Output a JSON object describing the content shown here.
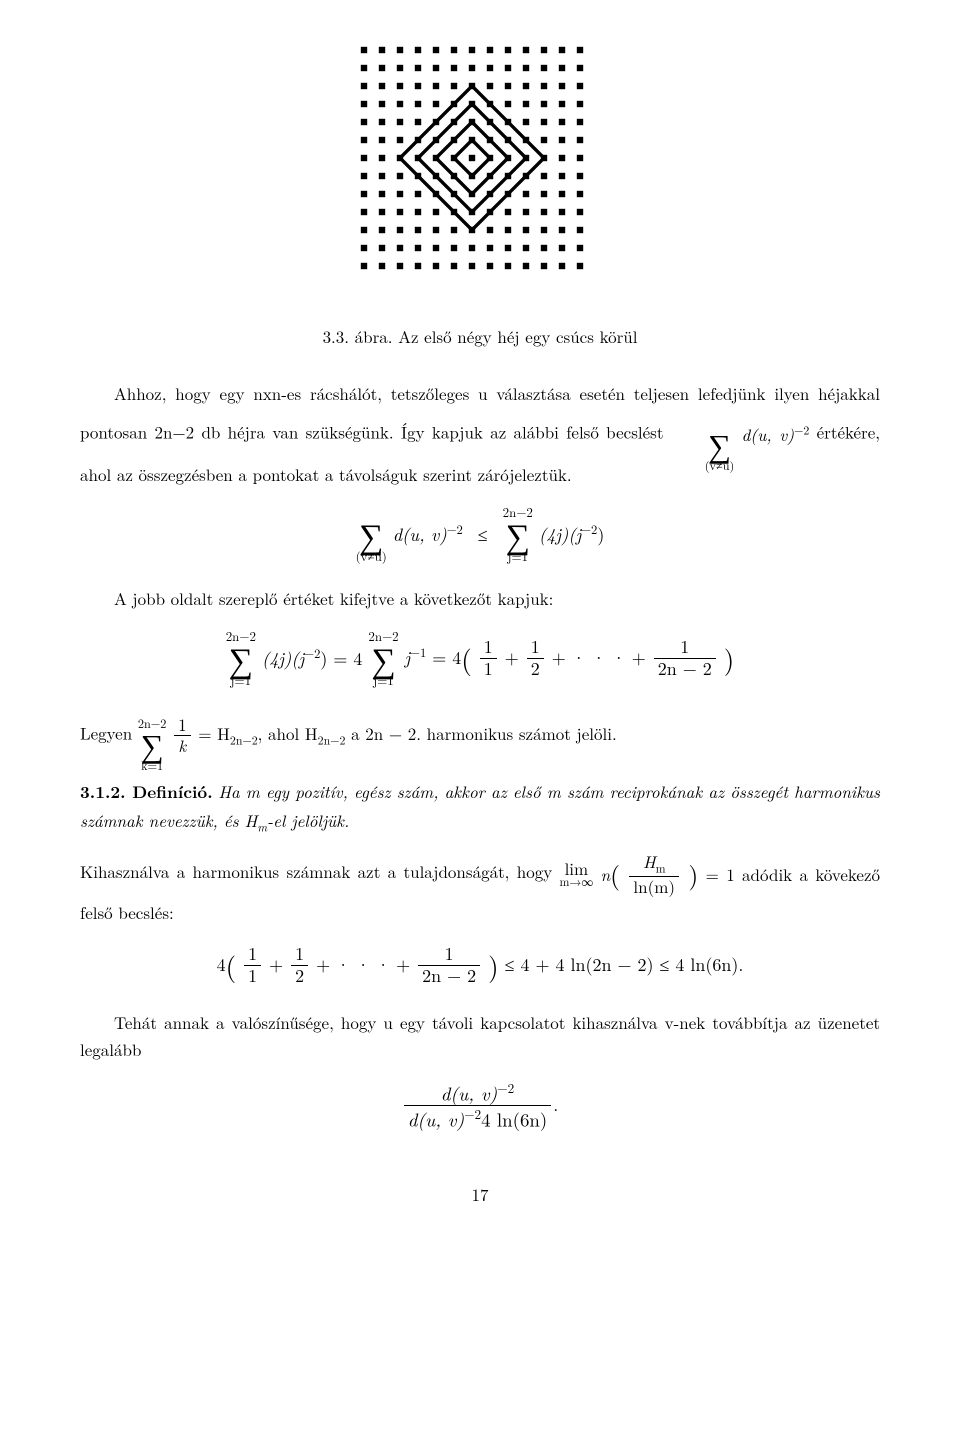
{
  "figure": {
    "caption_label": "3.3. ábra.",
    "caption_text": "Az első négy héj egy csúcs körül",
    "grid_size": 13,
    "dot_color": "#000000",
    "line_color": "#000000",
    "dot_step": 18,
    "dot_radius": 3.2,
    "line_width": 3.4,
    "rings": [
      1,
      2,
      3,
      4
    ]
  },
  "p1": "Ahhoz, hogy egy nxn-es rácshálót, tetszőleges u választása esetén teljesen lefedjünk ilyen héjakkal pontosan 2n−2 db héjra van szükségünk. Így kapjuk az alábbi felső becslést ",
  "p1_tail": " értékére, ahol az összegzésben a pontokat a távolságuk szerint zárójeleztük.",
  "eq1_lhs_bot": "(v≠u)",
  "eq1_lhs_body": "d(u, v)",
  "eq1_lhs_exp": "−2",
  "eq1_rhs_top": "2n−2",
  "eq1_rhs_bot": "j=1",
  "eq1_rhs_body": "(4j)(j",
  "eq1_rhs_exp": "−2",
  "eq1_rhs_close": ")",
  "p2": "A jobb oldalt szereplő értéket kifejtve a következőt kapjuk:",
  "eq2_sum_top": "2n−2",
  "eq2_sum_bot": "j=1",
  "eq2_a": "(4j)(j",
  "eq2_a_exp": "−2",
  "eq2_a_close": ") = 4",
  "eq2_b": "j",
  "eq2_b_exp": "−1",
  "eq2_eq4open": " = 4",
  "eq2_frac1_num": "1",
  "eq2_frac1_den": "1",
  "eq2_frac2_num": "1",
  "eq2_frac2_den": "2",
  "eq2_dots": " + · · · + ",
  "eq2_frac3_num": "1",
  "eq2_frac3_den": "2n − 2",
  "p3_a": "Legyen ",
  "p3_sum_top": "2n−2",
  "p3_sum_bot": "k=1",
  "p3_frac_num": "1",
  "p3_frac_den": "k",
  "p3_b": " = H",
  "p3_sub1": "2n−2",
  "p3_c": ", ahol H",
  "p3_sub2": "2n−2",
  "p3_d": " a 2n − 2. harmonikus számot jelöli.",
  "def_label": "3.1.2. Definíció.",
  "def_body": " Ha m egy pozitív, egész szám, akkor az első m szám reciprokának az összegét harmonikus számnak nevezzük, és H",
  "def_sub": "m",
  "def_tail": "-el jelöljük.",
  "p4a": "Kihasználva a harmonikus számnak azt a tulajdonságát, hogy ",
  "p4_lim": "lim",
  "p4_lim_sub": "m→∞",
  "p4_n": " n",
  "p4_frac_num": "H",
  "p4_frac_num_sub": "m",
  "p4_frac_den": "ln(m)",
  "p4b": " = 1 adódik a kövekező felső becslés:",
  "eq3_prefix": "4",
  "eq3_frac1_num": "1",
  "eq3_frac1_den": "1",
  "eq3_frac2_num": "1",
  "eq3_frac2_den": "2",
  "eq3_dots": " + · · · + ",
  "eq3_frac3_num": "1",
  "eq3_frac3_den": "2n − 2",
  "eq3_tail": " ≤ 4 + 4 ln(2n − 2) ≤ 4 ln(6n).",
  "p5": "Tehát annak a valószínűsége, hogy u egy távoli kapcsolatot kihasználva v-nek továbbítja az üzenetet legalább",
  "eq4_num_a": "d(u, v)",
  "eq4_num_exp": "−2",
  "eq4_den_a": "d(u, v)",
  "eq4_den_exp": "−2",
  "eq4_den_tail": "4 ln(6n)",
  "page_number": "17",
  "sum_dexp": "d(u, v)",
  "sum_dexp_exp": "−2"
}
